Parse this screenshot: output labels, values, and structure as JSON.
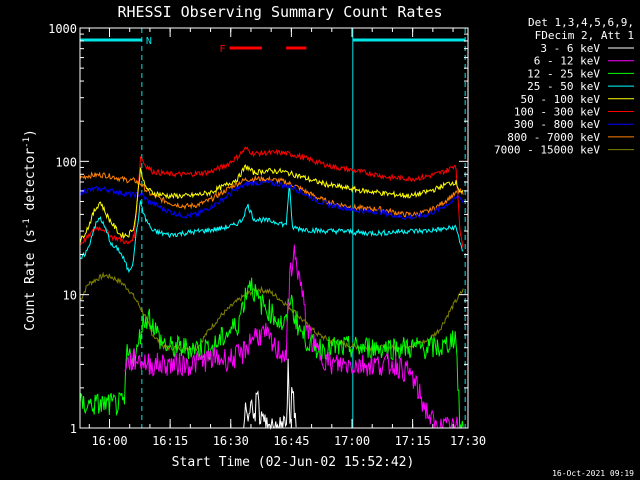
{
  "chart_data": {
    "type": "line",
    "title": "RHESSI Observing Summary Count Rates",
    "xlabel": "Start Time (02-Jun-02 15:52:42)",
    "ylabel_main": "Count Rate (s",
    "ylabel_sup1": "-1",
    "ylabel_mid": " detector",
    "ylabel_sup2": "-1",
    "ylabel_end": ")",
    "yscale": "log",
    "ylim": [
      1,
      1000
    ],
    "xlim_minutes": [
      0,
      96
    ],
    "x_start_label": "15:52:42",
    "ytick_values": [
      1,
      10,
      100,
      1000
    ],
    "ytick_labels": [
      "1",
      "10",
      "100",
      "1000"
    ],
    "xtick_minutes": [
      7.3,
      22.3,
      37.3,
      52.3,
      67.3,
      82.3,
      97.3
    ],
    "xtick_labels": [
      "16:00",
      "16:15",
      "16:30",
      "16:45",
      "17:00",
      "17:15",
      "17:30"
    ],
    "legend": {
      "header1": "Det 1,3,4,5,6,9,",
      "header2": "FDecim 2, Att 1",
      "placement": "top-right-outside"
    },
    "timestamp": "16-Oct-2021 09:19",
    "flags": [
      {
        "label": "N",
        "color": "#00e5e5",
        "spans": [
          [
            0,
            15.3
          ],
          [
            67.5,
            95.3
          ]
        ]
      },
      {
        "label": "F",
        "color": "#ff0000",
        "spans": [
          [
            37,
            45
          ],
          [
            51,
            56
          ]
        ]
      }
    ],
    "vlines_minutes": [
      15.3,
      67.5,
      95.3
    ],
    "series": [
      {
        "name": "3 - 6 keV",
        "color": "#ffffff",
        "points": [
          [
            40.5,
            1
          ],
          [
            41,
            2
          ],
          [
            41.5,
            1
          ],
          [
            42.5,
            2
          ],
          [
            43,
            1
          ],
          [
            44,
            2
          ],
          [
            44.5,
            1
          ],
          [
            45,
            1.5
          ],
          [
            46,
            1
          ],
          [
            51,
            1
          ],
          [
            51.5,
            3
          ],
          [
            52,
            1
          ],
          [
            52.5,
            2
          ],
          [
            53,
            1.5
          ],
          [
            53.5,
            1
          ]
        ]
      },
      {
        "name": "6 - 12 keV",
        "color": "#ff00ff",
        "points": [
          [
            11,
            3
          ],
          [
            14,
            3.3
          ],
          [
            17,
            3
          ],
          [
            22,
            3
          ],
          [
            27,
            3
          ],
          [
            32,
            3.3
          ],
          [
            37,
            3.3
          ],
          [
            40,
            3.5
          ],
          [
            43,
            5
          ],
          [
            46,
            5
          ],
          [
            48,
            4
          ],
          [
            51,
            3.5
          ],
          [
            52,
            15
          ],
          [
            53,
            20
          ],
          [
            54,
            15
          ],
          [
            55,
            10
          ],
          [
            56,
            6
          ],
          [
            58,
            4
          ],
          [
            62,
            3
          ],
          [
            66,
            3
          ],
          [
            70,
            3
          ],
          [
            74,
            3
          ],
          [
            78,
            3
          ],
          [
            82,
            2.5
          ],
          [
            85,
            1.5
          ],
          [
            88,
            1
          ],
          [
            90,
            1
          ],
          [
            92,
            1
          ],
          [
            94,
            1
          ]
        ]
      },
      {
        "name": "12 - 25 keV",
        "color": "#00ff00",
        "points": [
          [
            0,
            1.5
          ],
          [
            3,
            1.5
          ],
          [
            6,
            1.5
          ],
          [
            9,
            1.5
          ],
          [
            11,
            1.5
          ],
          [
            11.5,
            3.5
          ],
          [
            14,
            3.5
          ],
          [
            15.3,
            6
          ],
          [
            17,
            7
          ],
          [
            20,
            4.5
          ],
          [
            22,
            4
          ],
          [
            28,
            4
          ],
          [
            33,
            4
          ],
          [
            36,
            5
          ],
          [
            39,
            6
          ],
          [
            42,
            13
          ],
          [
            44,
            9
          ],
          [
            46,
            8
          ],
          [
            48,
            7
          ],
          [
            50,
            6
          ],
          [
            51,
            6
          ],
          [
            52,
            10
          ],
          [
            53,
            7
          ],
          [
            55,
            5
          ],
          [
            58,
            4
          ],
          [
            62,
            4
          ],
          [
            66,
            4
          ],
          [
            70,
            4
          ],
          [
            74,
            4
          ],
          [
            78,
            4
          ],
          [
            82,
            4
          ],
          [
            86,
            4
          ],
          [
            90,
            4
          ],
          [
            93,
            5
          ],
          [
            94,
            1
          ],
          [
            95,
            1
          ]
        ]
      },
      {
        "name": "25 - 50 keV",
        "color": "#00ffff",
        "points": [
          [
            0,
            18
          ],
          [
            2,
            22
          ],
          [
            3.5,
            32
          ],
          [
            5,
            38
          ],
          [
            6.5,
            30
          ],
          [
            8,
            23
          ],
          [
            9.5,
            22
          ],
          [
            11,
            18
          ],
          [
            12,
            15
          ],
          [
            13,
            17
          ],
          [
            14,
            30
          ],
          [
            15,
            50
          ],
          [
            16,
            38
          ],
          [
            18,
            30
          ],
          [
            22,
            28
          ],
          [
            26,
            29
          ],
          [
            30,
            30
          ],
          [
            34,
            31
          ],
          [
            38,
            33
          ],
          [
            40,
            36
          ],
          [
            41.5,
            47
          ],
          [
            43,
            37
          ],
          [
            46,
            36
          ],
          [
            49,
            35
          ],
          [
            51,
            33
          ],
          [
            51.8,
            70
          ],
          [
            52.5,
            32
          ],
          [
            55,
            31
          ],
          [
            60,
            30
          ],
          [
            65,
            30
          ],
          [
            70,
            29
          ],
          [
            75,
            29
          ],
          [
            80,
            30
          ],
          [
            85,
            30
          ],
          [
            90,
            31
          ],
          [
            93,
            32
          ],
          [
            94,
            25
          ],
          [
            95,
            20
          ]
        ]
      },
      {
        "name": "50 - 100 keV",
        "color": "#ffff00",
        "points": [
          [
            0,
            25
          ],
          [
            2,
            32
          ],
          [
            3.5,
            42
          ],
          [
            5,
            50
          ],
          [
            6.5,
            40
          ],
          [
            8,
            34
          ],
          [
            10,
            28
          ],
          [
            12,
            28
          ],
          [
            13.5,
            33
          ],
          [
            15,
            90
          ],
          [
            16,
            65
          ],
          [
            18,
            58
          ],
          [
            22,
            55
          ],
          [
            27,
            55
          ],
          [
            32,
            58
          ],
          [
            36,
            66
          ],
          [
            39,
            74
          ],
          [
            41,
            92
          ],
          [
            43,
            82
          ],
          [
            46,
            85
          ],
          [
            50,
            84
          ],
          [
            54,
            78
          ],
          [
            58,
            71
          ],
          [
            62,
            66
          ],
          [
            66,
            63
          ],
          [
            70,
            60
          ],
          [
            73,
            59
          ],
          [
            76,
            57
          ],
          [
            79,
            56
          ],
          [
            82,
            55
          ],
          [
            85,
            58
          ],
          [
            88,
            62
          ],
          [
            91,
            68
          ],
          [
            93,
            70
          ],
          [
            94,
            60
          ],
          [
            95,
            58
          ]
        ]
      },
      {
        "name": "100 - 300 keV",
        "color": "#ff0000",
        "points": [
          [
            0,
            24
          ],
          [
            2,
            27
          ],
          [
            4,
            32
          ],
          [
            6,
            31
          ],
          [
            8,
            27
          ],
          [
            10,
            26
          ],
          [
            12,
            24
          ],
          [
            13.5,
            28
          ],
          [
            15,
            110
          ],
          [
            16,
            95
          ],
          [
            18,
            84
          ],
          [
            22,
            80
          ],
          [
            27,
            80
          ],
          [
            32,
            83
          ],
          [
            36,
            93
          ],
          [
            39,
            108
          ],
          [
            41,
            125
          ],
          [
            43,
            114
          ],
          [
            46,
            116
          ],
          [
            50,
            116
          ],
          [
            54,
            110
          ],
          [
            58,
            100
          ],
          [
            62,
            92
          ],
          [
            66,
            87
          ],
          [
            70,
            83
          ],
          [
            73,
            80
          ],
          [
            76,
            76
          ],
          [
            79,
            75
          ],
          [
            82,
            74
          ],
          [
            85,
            76
          ],
          [
            88,
            80
          ],
          [
            91,
            86
          ],
          [
            93,
            95
          ],
          [
            94,
            30
          ],
          [
            95,
            22
          ]
        ]
      },
      {
        "name": "300 - 800 keV",
        "color": "#0000ff",
        "points": [
          [
            0,
            58
          ],
          [
            2,
            61
          ],
          [
            4,
            62
          ],
          [
            6,
            62
          ],
          [
            8,
            60
          ],
          [
            10,
            58
          ],
          [
            12,
            57
          ],
          [
            13.5,
            56
          ],
          [
            15,
            57
          ],
          [
            17,
            50
          ],
          [
            20,
            45
          ],
          [
            23,
            41
          ],
          [
            26,
            39
          ],
          [
            29,
            40
          ],
          [
            32,
            45
          ],
          [
            35,
            51
          ],
          [
            38,
            60
          ],
          [
            41,
            67
          ],
          [
            44,
            69
          ],
          [
            47,
            69
          ],
          [
            50,
            67
          ],
          [
            53,
            63
          ],
          [
            56,
            56
          ],
          [
            59,
            50
          ],
          [
            62,
            47
          ],
          [
            65,
            45
          ],
          [
            68,
            43
          ],
          [
            71,
            42
          ],
          [
            74,
            42
          ],
          [
            77,
            40
          ],
          [
            80,
            38
          ],
          [
            83,
            38
          ],
          [
            86,
            40
          ],
          [
            89,
            44
          ],
          [
            92,
            50
          ],
          [
            94,
            55
          ],
          [
            95,
            48
          ]
        ]
      },
      {
        "name": "800 - 7000 keV",
        "color": "#ff8000",
        "points": [
          [
            0,
            75
          ],
          [
            2,
            78
          ],
          [
            4,
            79
          ],
          [
            6,
            79
          ],
          [
            8,
            77
          ],
          [
            10,
            74
          ],
          [
            12,
            72
          ],
          [
            13.5,
            72
          ],
          [
            15,
            68
          ],
          [
            17,
            58
          ],
          [
            20,
            52
          ],
          [
            23,
            48
          ],
          [
            26,
            46
          ],
          [
            29,
            47
          ],
          [
            32,
            51
          ],
          [
            35,
            58
          ],
          [
            38,
            66
          ],
          [
            41,
            73
          ],
          [
            44,
            74
          ],
          [
            47,
            73
          ],
          [
            50,
            71
          ],
          [
            53,
            66
          ],
          [
            56,
            59
          ],
          [
            59,
            53
          ],
          [
            62,
            49
          ],
          [
            65,
            47
          ],
          [
            68,
            45
          ],
          [
            71,
            44
          ],
          [
            74,
            44
          ],
          [
            77,
            42
          ],
          [
            80,
            40
          ],
          [
            83,
            40
          ],
          [
            86,
            42
          ],
          [
            89,
            47
          ],
          [
            92,
            55
          ],
          [
            94,
            60
          ],
          [
            95,
            55
          ]
        ]
      },
      {
        "name": "7000 - 15000 keV",
        "color": "#808000",
        "points": [
          [
            0,
            9
          ],
          [
            2,
            12
          ],
          [
            4,
            13
          ],
          [
            6,
            14
          ],
          [
            8,
            13.5
          ],
          [
            10,
            12.5
          ],
          [
            12,
            11
          ],
          [
            14,
            9
          ],
          [
            16,
            7
          ],
          [
            18,
            5
          ],
          [
            21,
            4
          ],
          [
            25,
            4
          ],
          [
            29,
            4
          ],
          [
            32,
            5.5
          ],
          [
            35,
            7
          ],
          [
            38,
            8.5
          ],
          [
            41,
            10
          ],
          [
            44,
            11
          ],
          [
            47,
            10.5
          ],
          [
            50,
            9
          ],
          [
            53,
            7.5
          ],
          [
            56,
            6
          ],
          [
            59,
            5
          ],
          [
            62,
            4.5
          ],
          [
            66,
            4.2
          ],
          [
            70,
            4
          ],
          [
            74,
            4
          ],
          [
            78,
            4
          ],
          [
            82,
            4.2
          ],
          [
            86,
            4.5
          ],
          [
            89,
            5.5
          ],
          [
            92,
            8
          ],
          [
            94,
            10
          ],
          [
            95,
            11
          ]
        ]
      }
    ]
  }
}
